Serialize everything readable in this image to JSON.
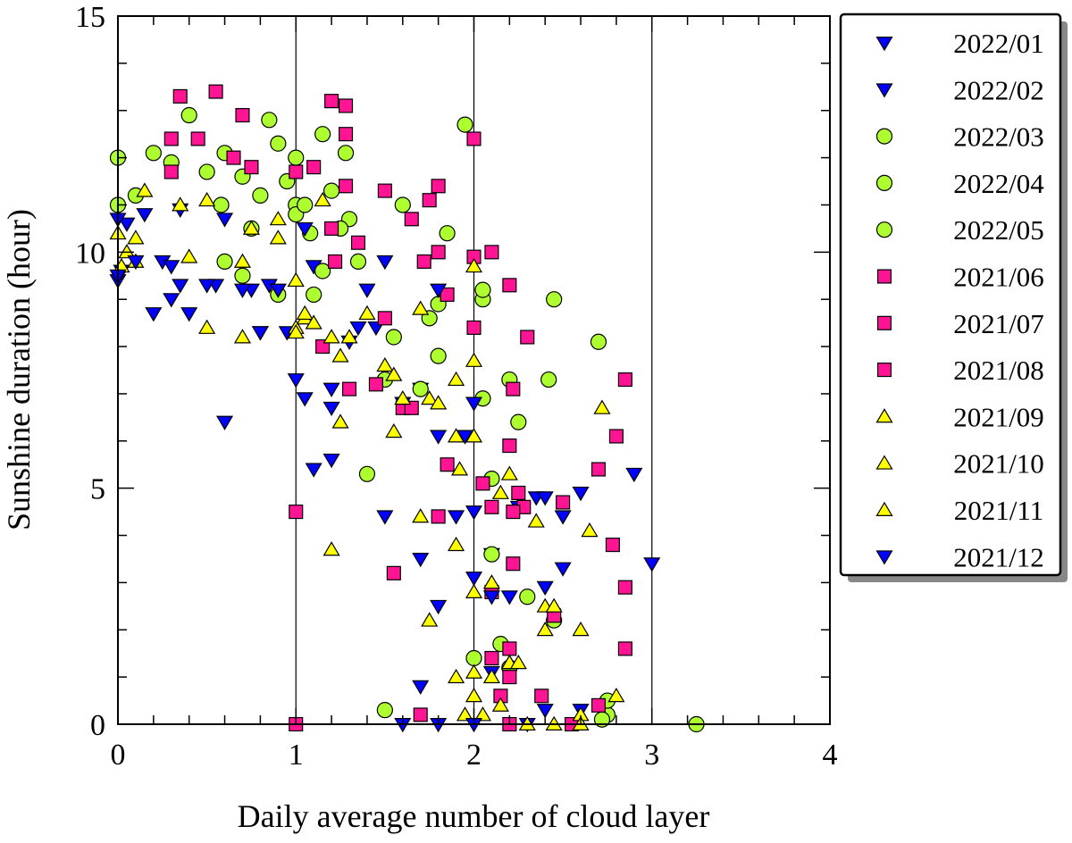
{
  "chart_data": {
    "type": "scatter",
    "title": "",
    "xlabel": "Daily average number of cloud layer",
    "ylabel": "Sunshine duration (hour)",
    "xlim": [
      0,
      4
    ],
    "ylim": [
      0,
      15
    ],
    "x_ticks": [
      0,
      1,
      2,
      3,
      4
    ],
    "y_ticks": [
      0,
      5,
      10,
      15
    ],
    "x_tick_labels": [
      "0",
      "1",
      "2",
      "3",
      "4"
    ],
    "y_tick_labels": [
      "0",
      "5",
      "10",
      "15"
    ],
    "vertical_gridlines_at": [
      1,
      2,
      3
    ],
    "legend_position": "right",
    "group_styles": {
      "winter": {
        "marker": "triangle-down",
        "fill": "#0000ff",
        "stroke": "#000000"
      },
      "spring": {
        "marker": "circle",
        "fill": "#adff2f",
        "stroke": "#000000"
      },
      "summer": {
        "marker": "square",
        "fill": "#ff1493",
        "stroke": "#000000"
      },
      "autumn": {
        "marker": "triangle-up",
        "fill": "#ffff00",
        "stroke": "#000000"
      }
    },
    "series": [
      {
        "name": "2022/01",
        "style": "winter",
        "points": [
          [
            0.0,
            9.4
          ],
          [
            0.02,
            9.6
          ],
          [
            0.2,
            8.7
          ],
          [
            0.3,
            9.0
          ],
          [
            0.4,
            8.7
          ],
          [
            0.55,
            9.3
          ],
          [
            0.75,
            9.2
          ],
          [
            0.85,
            9.3
          ],
          [
            0.95,
            8.3
          ],
          [
            1.05,
            6.9
          ],
          [
            1.2,
            6.7
          ],
          [
            1.45,
            8.4
          ],
          [
            1.6,
            6.8
          ],
          [
            1.8,
            6.1
          ],
          [
            1.9,
            4.4
          ],
          [
            2.0,
            4.5
          ],
          [
            2.1,
            3.6
          ],
          [
            2.25,
            4.6
          ],
          [
            2.4,
            2.9
          ],
          [
            2.5,
            4.4
          ],
          [
            2.9,
            5.3
          ],
          [
            3.0,
            3.4
          ],
          [
            1.6,
            0.0
          ],
          [
            2.6,
            0.3
          ]
        ]
      },
      {
        "name": "2022/02",
        "style": "winter",
        "points": [
          [
            0.05,
            10.6
          ],
          [
            0.15,
            10.8
          ],
          [
            0.25,
            9.8
          ],
          [
            0.35,
            10.9
          ],
          [
            0.5,
            9.3
          ],
          [
            0.6,
            6.4
          ],
          [
            0.7,
            9.2
          ],
          [
            0.8,
            8.3
          ],
          [
            1.0,
            7.3
          ],
          [
            1.1,
            9.7
          ],
          [
            1.2,
            5.6
          ],
          [
            1.3,
            8.1
          ],
          [
            1.5,
            9.8
          ],
          [
            1.7,
            7.1
          ],
          [
            1.8,
            2.5
          ],
          [
            2.0,
            3.1
          ],
          [
            2.1,
            1.1
          ],
          [
            2.2,
            2.7
          ],
          [
            2.35,
            4.8
          ],
          [
            2.6,
            4.9
          ],
          [
            1.7,
            0.8
          ],
          [
            2.3,
            0.0
          ]
        ]
      },
      {
        "name": "2022/03",
        "style": "spring",
        "points": [
          [
            0.0,
            12.0
          ],
          [
            0.1,
            11.2
          ],
          [
            0.3,
            11.9
          ],
          [
            0.5,
            11.7
          ],
          [
            0.6,
            9.8
          ],
          [
            0.7,
            11.6
          ],
          [
            0.8,
            11.2
          ],
          [
            0.9,
            12.3
          ],
          [
            1.0,
            11.0
          ],
          [
            1.1,
            9.1
          ],
          [
            1.2,
            11.3
          ],
          [
            1.3,
            10.7
          ],
          [
            1.4,
            5.3
          ],
          [
            1.55,
            8.2
          ],
          [
            1.7,
            7.1
          ],
          [
            1.85,
            10.4
          ],
          [
            2.05,
            9.0
          ],
          [
            2.2,
            7.3
          ],
          [
            2.45,
            9.0
          ],
          [
            1.5,
            0.3
          ],
          [
            2.75,
            0.2
          ]
        ]
      },
      {
        "name": "2022/04",
        "style": "spring",
        "points": [
          [
            0.0,
            11.0
          ],
          [
            0.2,
            12.1
          ],
          [
            0.4,
            12.9
          ],
          [
            0.58,
            11.0
          ],
          [
            0.75,
            10.5
          ],
          [
            0.85,
            12.8
          ],
          [
            0.95,
            11.5
          ],
          [
            1.0,
            10.8
          ],
          [
            1.05,
            11.0
          ],
          [
            1.15,
            9.6
          ],
          [
            1.25,
            10.5
          ],
          [
            1.5,
            7.3
          ],
          [
            1.6,
            11.0
          ],
          [
            1.8,
            8.9
          ],
          [
            1.95,
            12.7
          ],
          [
            2.05,
            6.9
          ],
          [
            2.1,
            5.2
          ],
          [
            2.25,
            6.4
          ],
          [
            2.42,
            7.3
          ],
          [
            2.7,
            8.1
          ],
          [
            2.0,
            1.4
          ],
          [
            2.2,
            1.2
          ],
          [
            2.75,
            0.5
          ]
        ]
      },
      {
        "name": "2022/05",
        "style": "spring",
        "points": [
          [
            0.6,
            12.1
          ],
          [
            0.7,
            9.5
          ],
          [
            0.9,
            9.1
          ],
          [
            1.0,
            12.0
          ],
          [
            1.08,
            10.4
          ],
          [
            1.15,
            12.5
          ],
          [
            1.28,
            12.1
          ],
          [
            1.35,
            9.8
          ],
          [
            1.75,
            8.6
          ],
          [
            1.8,
            7.8
          ],
          [
            2.05,
            9.2
          ],
          [
            2.1,
            3.6
          ],
          [
            2.3,
            2.7
          ],
          [
            2.45,
            2.2
          ],
          [
            3.25,
            0.0
          ],
          [
            2.15,
            1.7
          ],
          [
            2.72,
            0.1
          ]
        ]
      },
      {
        "name": "2021/06",
        "style": "summer",
        "points": [
          [
            0.3,
            12.4
          ],
          [
            0.45,
            12.4
          ],
          [
            0.55,
            13.4
          ],
          [
            0.75,
            11.8
          ],
          [
            1.0,
            4.5
          ],
          [
            1.1,
            11.8
          ],
          [
            1.2,
            13.2
          ],
          [
            1.28,
            13.1
          ],
          [
            1.35,
            10.2
          ],
          [
            1.5,
            11.3
          ],
          [
            1.65,
            10.7
          ],
          [
            1.75,
            11.1
          ],
          [
            1.8,
            11.4
          ],
          [
            2.0,
            12.4
          ],
          [
            2.1,
            10.0
          ],
          [
            2.25,
            4.9
          ],
          [
            2.5,
            4.7
          ],
          [
            2.8,
            6.1
          ],
          [
            2.85,
            7.3
          ],
          [
            1.0,
            0.0
          ],
          [
            2.2,
            0.0
          ]
        ]
      },
      {
        "name": "2021/07",
        "style": "summer",
        "points": [
          [
            0.3,
            11.7
          ],
          [
            0.35,
            13.3
          ],
          [
            0.65,
            12.0
          ],
          [
            0.7,
            12.9
          ],
          [
            1.0,
            11.7
          ],
          [
            1.15,
            8.0
          ],
          [
            1.22,
            9.8
          ],
          [
            1.28,
            11.4
          ],
          [
            1.45,
            7.2
          ],
          [
            1.6,
            6.7
          ],
          [
            1.72,
            9.8
          ],
          [
            1.85,
            9.1
          ],
          [
            2.0,
            9.9
          ],
          [
            2.1,
            4.6
          ],
          [
            2.2,
            9.3
          ],
          [
            2.3,
            8.2
          ],
          [
            2.7,
            5.4
          ],
          [
            2.78,
            3.8
          ],
          [
            2.85,
            2.9
          ],
          [
            2.1,
            1.4
          ],
          [
            2.2,
            1.0
          ],
          [
            2.55,
            0.0
          ]
        ]
      },
      {
        "name": "2021/08",
        "style": "summer",
        "points": [
          [
            1.2,
            10.5
          ],
          [
            1.28,
            12.5
          ],
          [
            1.3,
            7.1
          ],
          [
            1.5,
            8.6
          ],
          [
            1.55,
            3.2
          ],
          [
            1.65,
            6.7
          ],
          [
            1.8,
            4.4
          ],
          [
            1.85,
            5.5
          ],
          [
            1.8,
            10.0
          ],
          [
            2.0,
            8.4
          ],
          [
            2.05,
            5.1
          ],
          [
            2.2,
            5.9
          ],
          [
            2.22,
            7.1
          ],
          [
            2.28,
            4.6
          ],
          [
            2.45,
            2.3
          ],
          [
            2.85,
            1.6
          ],
          [
            2.2,
            1.6
          ],
          [
            2.38,
            0.6
          ],
          [
            2.7,
            0.4
          ],
          [
            1.7,
            0.2
          ],
          [
            2.15,
            0.6
          ],
          [
            2.1,
            2.8
          ],
          [
            2.22,
            3.4
          ],
          [
            2.22,
            4.5
          ]
        ]
      },
      {
        "name": "2021/09",
        "style": "autumn",
        "points": [
          [
            0.0,
            10.4
          ],
          [
            0.15,
            11.3
          ],
          [
            0.35,
            11.0
          ],
          [
            0.5,
            11.1
          ],
          [
            0.75,
            10.5
          ],
          [
            0.9,
            10.7
          ],
          [
            1.0,
            8.4
          ],
          [
            1.05,
            8.6
          ],
          [
            1.15,
            11.1
          ],
          [
            1.25,
            7.8
          ],
          [
            1.5,
            7.6
          ],
          [
            1.7,
            8.8
          ],
          [
            1.9,
            6.1
          ],
          [
            2.0,
            9.7
          ],
          [
            2.2,
            5.3
          ],
          [
            2.4,
            2.5
          ],
          [
            2.72,
            6.7
          ],
          [
            2.8,
            0.6
          ],
          [
            2.6,
            0.2
          ],
          [
            2.1,
            1.0
          ],
          [
            1.95,
            0.2
          ]
        ]
      },
      {
        "name": "2021/10",
        "style": "autumn",
        "points": [
          [
            0.02,
            9.7
          ],
          [
            0.1,
            10.3
          ],
          [
            0.4,
            9.9
          ],
          [
            0.7,
            9.8
          ],
          [
            0.9,
            10.3
          ],
          [
            1.0,
            9.4
          ],
          [
            1.05,
            8.7
          ],
          [
            1.2,
            8.2
          ],
          [
            1.25,
            6.4
          ],
          [
            1.4,
            8.7
          ],
          [
            1.55,
            6.2
          ],
          [
            1.75,
            6.9
          ],
          [
            1.8,
            6.8
          ],
          [
            1.9,
            7.3
          ],
          [
            2.0,
            6.1
          ],
          [
            2.0,
            7.7
          ],
          [
            2.1,
            3.0
          ],
          [
            2.2,
            1.3
          ],
          [
            2.35,
            4.3
          ],
          [
            2.4,
            2.0
          ],
          [
            2.6,
            2.0
          ],
          [
            2.65,
            4.1
          ],
          [
            2.0,
            1.1
          ],
          [
            2.3,
            0.0
          ],
          [
            2.05,
            0.2
          ]
        ]
      },
      {
        "name": "2021/11",
        "style": "autumn",
        "points": [
          [
            0.05,
            10.0
          ],
          [
            0.1,
            9.8
          ],
          [
            0.5,
            8.4
          ],
          [
            0.7,
            8.2
          ],
          [
            1.0,
            8.3
          ],
          [
            1.1,
            8.5
          ],
          [
            1.2,
            3.7
          ],
          [
            1.3,
            8.2
          ],
          [
            1.55,
            7.4
          ],
          [
            1.6,
            6.9
          ],
          [
            1.75,
            2.2
          ],
          [
            1.7,
            4.4
          ],
          [
            1.9,
            3.8
          ],
          [
            1.92,
            5.4
          ],
          [
            2.0,
            2.8
          ],
          [
            2.15,
            4.9
          ],
          [
            2.2,
            1.3
          ],
          [
            2.25,
            1.3
          ],
          [
            2.45,
            2.5
          ],
          [
            2.15,
            0.4
          ],
          [
            1.9,
            1.0
          ],
          [
            2.0,
            0.6
          ],
          [
            2.45,
            0.0
          ],
          [
            2.6,
            0.0
          ]
        ]
      },
      {
        "name": "2021/12",
        "style": "winter",
        "points": [
          [
            0.0,
            9.5
          ],
          [
            0.0,
            10.7
          ],
          [
            0.1,
            9.8
          ],
          [
            0.3,
            9.7
          ],
          [
            0.35,
            9.3
          ],
          [
            0.6,
            10.7
          ],
          [
            0.8,
            8.3
          ],
          [
            0.9,
            9.2
          ],
          [
            1.05,
            10.5
          ],
          [
            1.1,
            5.4
          ],
          [
            1.2,
            7.1
          ],
          [
            1.35,
            8.4
          ],
          [
            1.4,
            9.2
          ],
          [
            1.5,
            4.4
          ],
          [
            1.7,
            3.5
          ],
          [
            1.8,
            9.2
          ],
          [
            1.95,
            6.1
          ],
          [
            2.0,
            6.8
          ],
          [
            2.1,
            2.7
          ],
          [
            2.4,
            4.8
          ],
          [
            2.5,
            3.3
          ],
          [
            2.0,
            0.0
          ],
          [
            1.8,
            0.0
          ],
          [
            2.4,
            0.3
          ]
        ]
      }
    ]
  }
}
